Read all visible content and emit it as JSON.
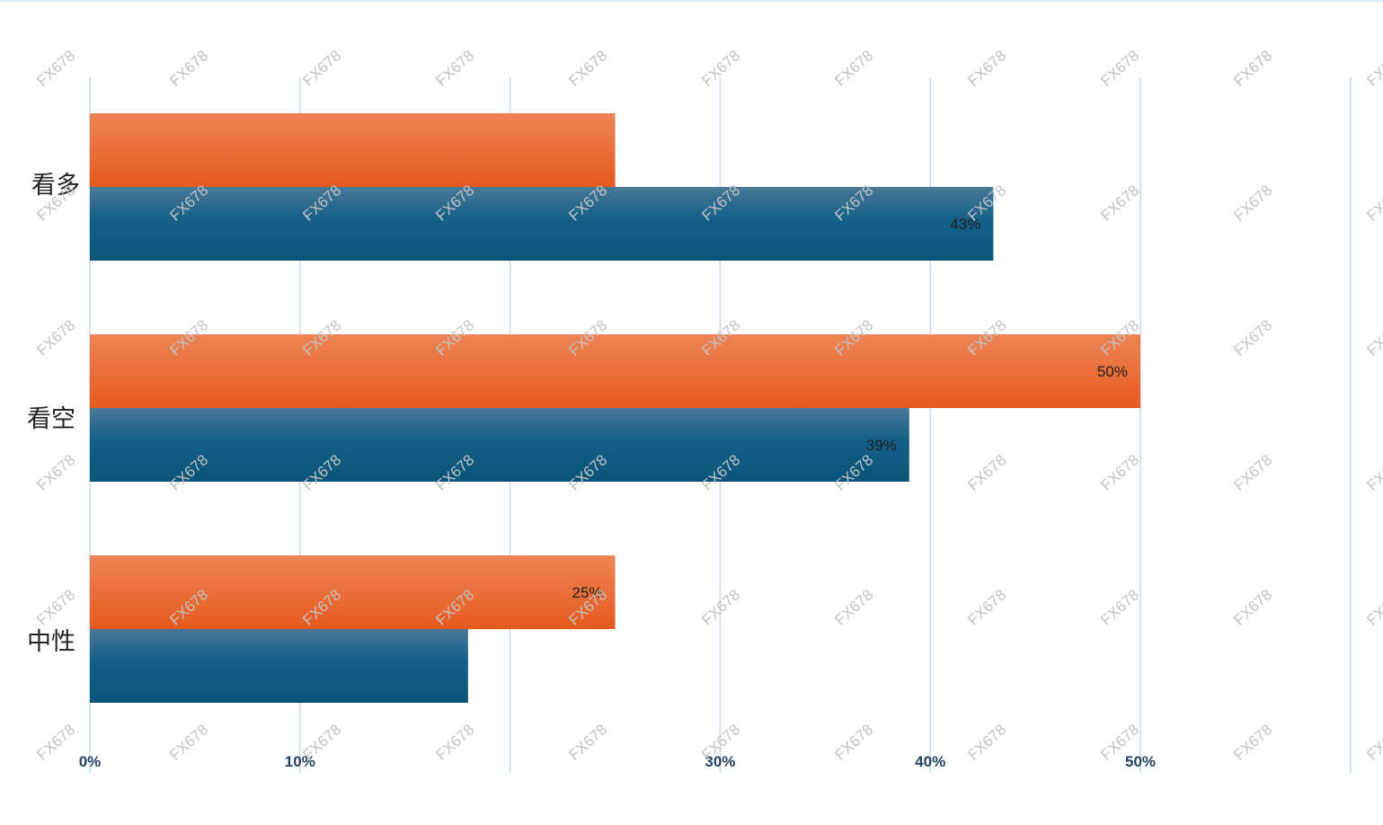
{
  "chart_data": {
    "type": "bar",
    "orientation": "horizontal",
    "categories": [
      "看多",
      "看空",
      "中性"
    ],
    "series": [
      {
        "color": "#e8642a",
        "values": [
          25,
          50,
          25
        ],
        "labels": [
          "",
          "50%",
          "25%"
        ]
      },
      {
        "color": "#135f87",
        "values": [
          43,
          39,
          18
        ],
        "labels": [
          "43%",
          "39%",
          ""
        ]
      }
    ],
    "xlim": [
      0,
      55
    ],
    "xticks": [
      0,
      10,
      30,
      40,
      50
    ],
    "xtick_labels": [
      "0%",
      "10%",
      "30%",
      "40%",
      "50%"
    ],
    "gridlines": [
      0,
      10,
      20,
      30,
      40,
      50,
      60
    ],
    "grid": true,
    "gridline_color": "#c9dcee",
    "watermark": "FX678"
  }
}
